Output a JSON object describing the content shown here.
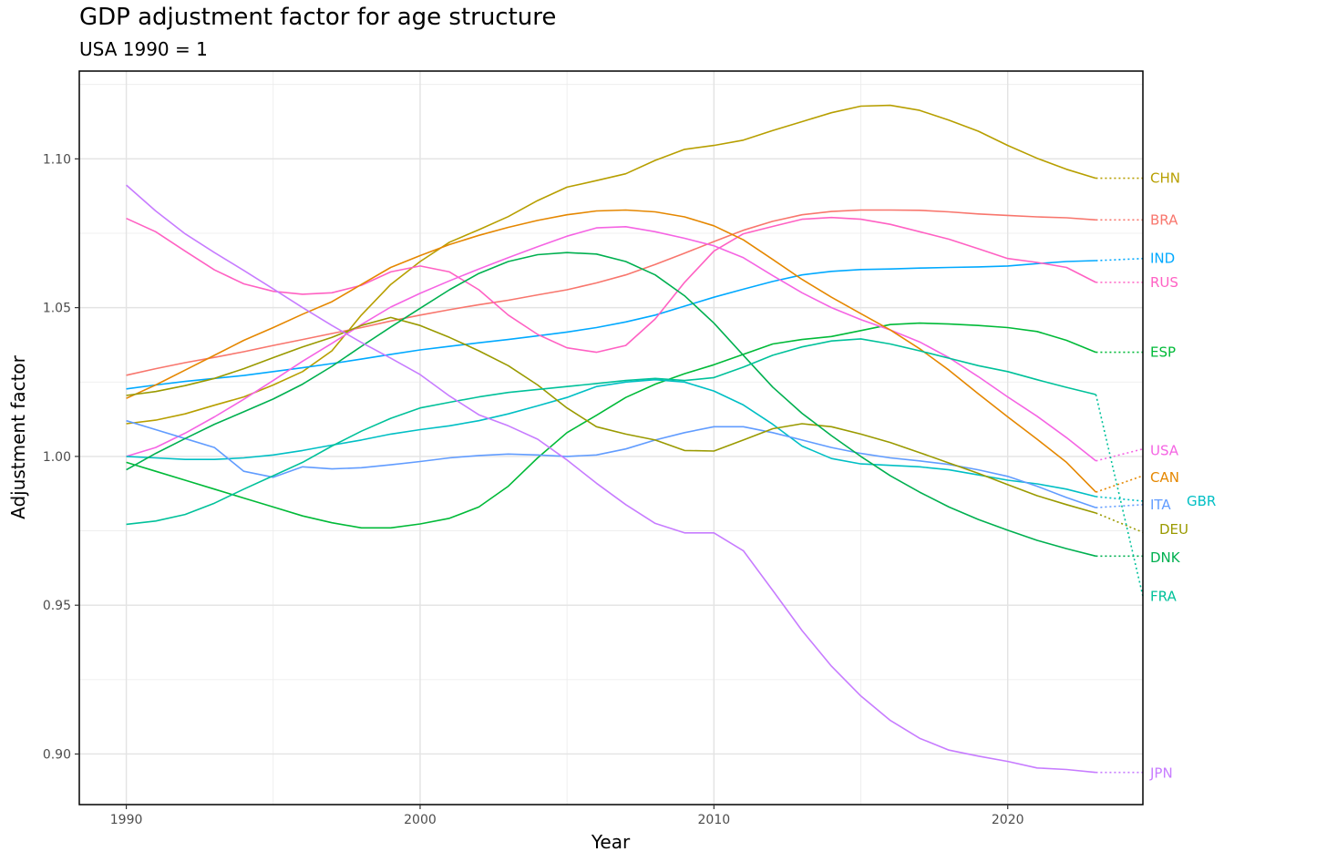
{
  "chart_data": {
    "type": "line",
    "title": "GDP adjustment factor for age structure",
    "subtitle": "USA 1990 = 1",
    "xlabel": "Year",
    "ylabel": "Adjustment factor",
    "xlim": [
      1988.4,
      2024.6
    ],
    "ylim": [
      0.883,
      1.1295
    ],
    "x_ticks": [
      {
        "value": 1990,
        "label": "1990"
      },
      {
        "value": 2000,
        "label": "2000"
      },
      {
        "value": 2010,
        "label": "2010"
      },
      {
        "value": 2020,
        "label": "2020"
      }
    ],
    "y_ticks": [
      {
        "value": 0.9,
        "label": "0.90"
      },
      {
        "value": 0.95,
        "label": "0.95"
      },
      {
        "value": 1.0,
        "label": "1.00"
      },
      {
        "value": 1.05,
        "label": "1.05"
      },
      {
        "value": 1.1,
        "label": "1.10"
      }
    ],
    "grid": true,
    "legend": "direct labels at right end of each line",
    "x": [
      1990,
      1991,
      1992,
      1993,
      1994,
      1995,
      1996,
      1997,
      1998,
      1999,
      2000,
      2001,
      2002,
      2003,
      2004,
      2005,
      2006,
      2007,
      2008,
      2009,
      2010,
      2011,
      2012,
      2013,
      2014,
      2015,
      2016,
      2017,
      2018,
      2019,
      2020,
      2021,
      2022,
      2023
    ],
    "projection": {
      "from_year": 2023,
      "to_year": 2024.6,
      "style": "dotted"
    },
    "series": [
      {
        "name": "CHN",
        "color": "#B79F00",
        "values": [
          1.011,
          1.0122,
          1.0143,
          1.0172,
          1.02,
          1.024,
          1.0285,
          1.0355,
          1.0475,
          1.0578,
          1.0655,
          1.072,
          1.0762,
          1.0806,
          1.086,
          1.0905,
          1.0927,
          1.095,
          1.0995,
          1.1032,
          1.1045,
          1.1063,
          1.1095,
          1.1125,
          1.1155,
          1.1177,
          1.118,
          1.1163,
          1.113,
          1.1093,
          1.1045,
          1.1002,
          1.0965,
          1.0935
        ],
        "projection_end": 1.0935
      },
      {
        "name": "BRA",
        "color": "#F8766D",
        "values": [
          1.0273,
          1.0295,
          1.0315,
          1.0333,
          1.0352,
          1.0373,
          1.0393,
          1.0413,
          1.0433,
          1.0455,
          1.0475,
          1.0493,
          1.051,
          1.0525,
          1.0543,
          1.056,
          1.0583,
          1.061,
          1.0645,
          1.0683,
          1.0722,
          1.076,
          1.079,
          1.0812,
          1.0823,
          1.0828,
          1.0828,
          1.0827,
          1.0822,
          1.0815,
          1.081,
          1.0805,
          1.0802,
          1.0795
        ],
        "projection_end": 1.0795
      },
      {
        "name": "IND",
        "color": "#00A9FF",
        "values": [
          1.0227,
          1.024,
          1.0252,
          1.0262,
          1.0272,
          1.0285,
          1.0298,
          1.0312,
          1.0327,
          1.0343,
          1.0358,
          1.037,
          1.0382,
          1.0393,
          1.0405,
          1.0418,
          1.0433,
          1.0452,
          1.0475,
          1.0505,
          1.0535,
          1.0562,
          1.0588,
          1.061,
          1.0622,
          1.0628,
          1.063,
          1.0633,
          1.0635,
          1.0637,
          1.064,
          1.0648,
          1.0655,
          1.0658
        ],
        "projection_end": 1.0665
      },
      {
        "name": "RUS",
        "color": "#FF61C3",
        "values": [
          1.08,
          1.0755,
          1.069,
          1.0627,
          1.058,
          1.0555,
          1.0545,
          1.055,
          1.0575,
          1.062,
          1.064,
          1.062,
          1.056,
          1.0475,
          1.041,
          1.0365,
          1.035,
          1.0373,
          1.0462,
          1.0585,
          1.069,
          1.0748,
          1.0773,
          1.0797,
          1.0803,
          1.0797,
          1.078,
          1.0755,
          1.073,
          1.0698,
          1.0665,
          1.0652,
          1.0635,
          1.0585
        ],
        "projection_end": 1.0585
      },
      {
        "name": "ESP",
        "color": "#00BA38",
        "values": [
          0.998,
          0.995,
          0.992,
          0.989,
          0.986,
          0.983,
          0.98,
          0.9777,
          0.976,
          0.976,
          0.9773,
          0.9792,
          0.983,
          0.99,
          0.9995,
          1.008,
          1.0138,
          1.0198,
          1.0243,
          1.0278,
          1.0308,
          1.0343,
          1.0378,
          1.0393,
          1.0403,
          1.0423,
          1.0443,
          1.0448,
          1.0445,
          1.044,
          1.0433,
          1.042,
          1.039,
          1.035
        ],
        "projection_end": 1.035
      },
      {
        "name": "USA",
        "color": "#F564E3",
        "values": [
          1.0,
          1.003,
          1.0078,
          1.0133,
          1.0192,
          1.0255,
          1.032,
          1.038,
          1.0443,
          1.0502,
          1.0548,
          1.059,
          1.063,
          1.0668,
          1.0705,
          1.074,
          1.0768,
          1.0772,
          1.0755,
          1.0733,
          1.0708,
          1.0668,
          1.0608,
          1.055,
          1.05,
          1.046,
          1.0425,
          1.0385,
          1.0332,
          1.0268,
          1.02,
          1.0135,
          1.0063,
          0.9985
        ],
        "projection_end": 1.0025
      },
      {
        "name": "CAN",
        "color": "#E58700",
        "values": [
          1.0195,
          1.024,
          1.029,
          1.034,
          1.039,
          1.0433,
          1.0478,
          1.052,
          1.0578,
          1.0635,
          1.0675,
          1.0712,
          1.0743,
          1.077,
          1.0793,
          1.0812,
          1.0825,
          1.0828,
          1.0822,
          1.0805,
          1.0775,
          1.0728,
          1.0662,
          1.0595,
          1.0535,
          1.048,
          1.0425,
          1.0362,
          1.029,
          1.021,
          1.0133,
          1.0058,
          0.998,
          0.988
        ],
        "projection_end": 0.9935
      },
      {
        "name": "GBR",
        "color": "#00BFC4",
        "values": [
          1.0,
          0.9995,
          0.999,
          0.999,
          0.9995,
          1.0005,
          1.002,
          1.0038,
          1.0055,
          1.0075,
          1.009,
          1.0103,
          1.012,
          1.0143,
          1.017,
          1.0198,
          1.0235,
          1.025,
          1.0258,
          1.025,
          1.022,
          1.0173,
          1.0108,
          1.0035,
          0.9993,
          0.9975,
          0.997,
          0.9965,
          0.9955,
          0.9938,
          0.992,
          0.9908,
          0.989,
          0.9865
        ],
        "projection_end": 0.985
      },
      {
        "name": "ITA",
        "color": "#619CFF",
        "values": [
          1.012,
          1.009,
          1.006,
          1.003,
          0.995,
          0.993,
          0.9965,
          0.9958,
          0.9962,
          0.9972,
          0.9983,
          0.9995,
          1.0003,
          1.0008,
          1.0005,
          1.0,
          1.0005,
          1.0025,
          1.0055,
          1.008,
          1.01,
          1.01,
          1.008,
          1.0055,
          1.003,
          1.001,
          0.9995,
          0.9985,
          0.9973,
          0.9955,
          0.9933,
          0.99,
          0.9862,
          0.9828
        ],
        "projection_end": 0.9838
      },
      {
        "name": "DEU",
        "color": "#9A9A00",
        "values": [
          1.0205,
          1.0218,
          1.0238,
          1.0262,
          1.0295,
          1.0332,
          1.0368,
          1.04,
          1.044,
          1.0467,
          1.044,
          1.04,
          1.0355,
          1.0305,
          1.024,
          1.0163,
          1.01,
          1.0075,
          1.0055,
          1.002,
          1.0018,
          1.0055,
          1.0093,
          1.011,
          1.01,
          1.0075,
          1.0047,
          1.0013,
          0.9978,
          0.9943,
          0.9905,
          0.9868,
          0.9838,
          0.981
        ],
        "projection_end": 0.9745
      },
      {
        "name": "DNK",
        "color": "#00B050",
        "values": [
          0.9955,
          1.001,
          1.006,
          1.0108,
          1.015,
          1.0193,
          1.0243,
          1.0303,
          1.037,
          1.0435,
          1.0498,
          1.056,
          1.0615,
          1.0655,
          1.0678,
          1.0685,
          1.068,
          1.0655,
          1.061,
          1.054,
          1.0448,
          1.034,
          1.0233,
          1.0145,
          1.007,
          1.0,
          0.9935,
          0.988,
          0.983,
          0.9788,
          0.9752,
          0.9718,
          0.969,
          0.9665
        ],
        "projection_end": 0.9665
      },
      {
        "name": "FRA",
        "color": "#00C19A",
        "values": [
          0.9772,
          0.9783,
          0.9805,
          0.9843,
          0.989,
          0.9935,
          0.998,
          1.0035,
          1.0085,
          1.0128,
          1.0163,
          1.0182,
          1.02,
          1.0215,
          1.0225,
          1.0235,
          1.0245,
          1.0255,
          1.0262,
          1.0255,
          1.0265,
          1.03,
          1.034,
          1.0368,
          1.0388,
          1.0395,
          1.0378,
          1.0355,
          1.033,
          1.0305,
          1.0285,
          1.0258,
          1.0232,
          1.0208
        ],
        "projection_end": 0.953
      },
      {
        "name": "JPN",
        "color": "#C77CFF",
        "values": [
          1.0912,
          1.0825,
          1.0748,
          1.0685,
          1.0625,
          1.0563,
          1.05,
          1.044,
          1.0383,
          1.033,
          1.0275,
          1.0203,
          1.014,
          1.0103,
          1.0058,
          0.9988,
          0.991,
          0.9838,
          0.9775,
          0.9743,
          0.9743,
          0.9683,
          0.955,
          0.9415,
          0.9295,
          0.9195,
          0.9113,
          0.9053,
          0.9013,
          0.8993,
          0.8975,
          0.8953,
          0.8948,
          0.8938
        ],
        "projection_end": 0.8938
      }
    ],
    "end_labels": [
      {
        "name": "CHN",
        "color": "#B79F00",
        "value": 1.0935
      },
      {
        "name": "BRA",
        "color": "#F8766D",
        "value": 1.0795
      },
      {
        "name": "IND",
        "color": "#00A9FF",
        "value": 1.0665
      },
      {
        "name": "RUS",
        "color": "#FF61C3",
        "value": 1.0585
      },
      {
        "name": "ESP",
        "color": "#00BA38",
        "value": 1.035
      },
      {
        "name": "USA",
        "color": "#F564E3",
        "value": 1.002
      },
      {
        "name": "CAN",
        "color": "#E58700",
        "value": 0.993
      },
      {
        "name": "GBR",
        "color": "#00BFC4",
        "value": 0.985
      },
      {
        "name": "ITA",
        "color": "#619CFF",
        "value": 0.9838
      },
      {
        "name": "DEU",
        "color": "#9A9A00",
        "value": 0.9755
      },
      {
        "name": "DNK",
        "color": "#00B050",
        "value": 0.966
      },
      {
        "name": "FRA",
        "color": "#00C19A",
        "value": 0.953
      },
      {
        "name": "JPN",
        "color": "#C77CFF",
        "value": 0.8935
      }
    ]
  }
}
